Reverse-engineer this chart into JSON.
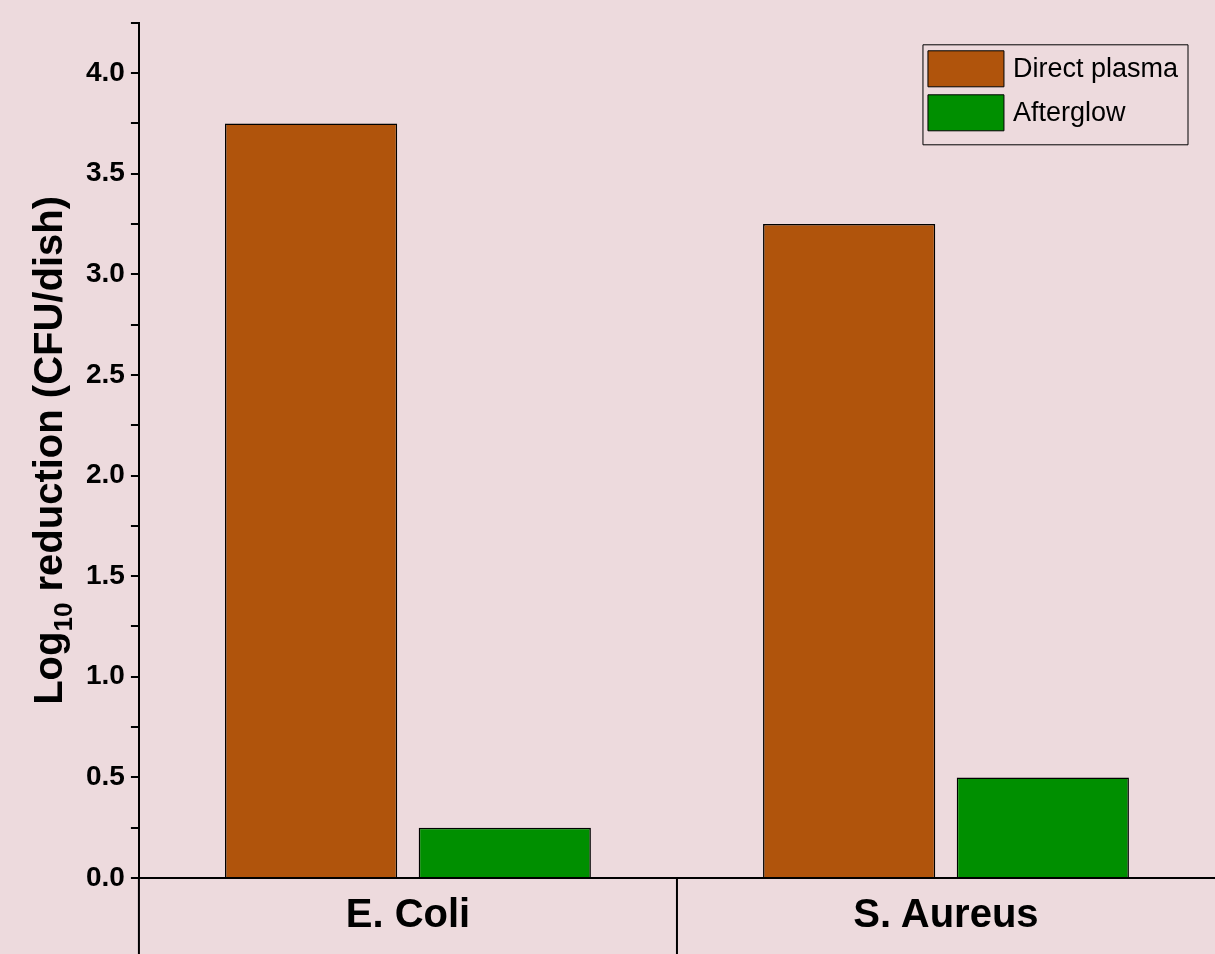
{
  "chart_data": {
    "type": "bar",
    "ylabel": "Log$_{10}$ reduction (CFU/dish)",
    "categories": [
      "E. Coli",
      "S. Aureus"
    ],
    "series": [
      {
        "name": "Direct plasma",
        "color": "#b0540c",
        "values": [
          3.75,
          3.25
        ]
      },
      {
        "name": "Afterglow",
        "color": "#008f00",
        "values": [
          0.25,
          0.5
        ]
      }
    ],
    "ylim": [
      0,
      4.25
    ],
    "yticks": [
      {
        "value": 0,
        "label": "0.0"
      },
      {
        "value": 0.25,
        "label": null
      },
      {
        "value": 0.5,
        "label": "0.5"
      },
      {
        "value": 0.75,
        "label": null
      },
      {
        "value": 1,
        "label": "1.0"
      },
      {
        "value": 1.25,
        "label": null
      },
      {
        "value": 1.5,
        "label": "1.5"
      },
      {
        "value": 1.75,
        "label": null
      },
      {
        "value": 2,
        "label": "2.0"
      },
      {
        "value": 2.25,
        "label": null
      },
      {
        "value": 2.5,
        "label": "2.5"
      },
      {
        "value": 2.75,
        "label": null
      },
      {
        "value": 3,
        "label": "3.0"
      },
      {
        "value": 3.25,
        "label": null
      },
      {
        "value": 3.5,
        "label": "3.5"
      },
      {
        "value": 3.75,
        "label": null
      },
      {
        "value": 4,
        "label": "4.0"
      },
      {
        "value": 4.25,
        "label": null
      }
    ],
    "legend": "top right"
  }
}
